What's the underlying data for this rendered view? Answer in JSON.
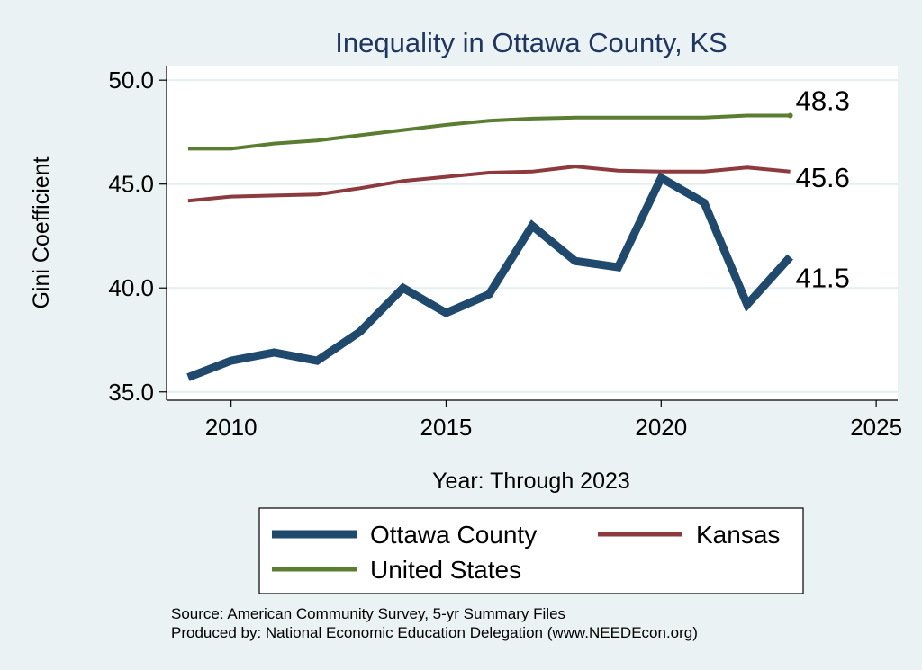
{
  "chart_data": {
    "type": "line",
    "title": "Inequality in Ottawa County, KS",
    "xlabel": "Year: Through 2023",
    "ylabel": "Gini Coefficient",
    "xlim": [
      2008.5,
      2025.5
    ],
    "ylim": [
      34.6,
      50.7
    ],
    "xticks": [
      2010,
      2015,
      2020,
      2025
    ],
    "yticks": [
      35.0,
      40.0,
      45.0,
      50.0
    ],
    "x": [
      2009,
      2010,
      2011,
      2012,
      2013,
      2014,
      2015,
      2016,
      2017,
      2018,
      2019,
      2020,
      2021,
      2022,
      2023
    ],
    "series": [
      {
        "name": "Ottawa County",
        "color": "#1f4a6e",
        "values": [
          35.7,
          36.5,
          36.9,
          36.5,
          37.9,
          40.0,
          38.8,
          39.7,
          43.0,
          41.3,
          41.0,
          45.3,
          44.1,
          39.2,
          41.5
        ],
        "end_label": "41.5"
      },
      {
        "name": "Kansas",
        "color": "#8c3a3e",
        "values": [
          44.2,
          44.4,
          44.45,
          44.5,
          44.8,
          45.15,
          45.35,
          45.55,
          45.6,
          45.85,
          45.65,
          45.6,
          45.6,
          45.8,
          45.6
        ],
        "end_label": "45.6"
      },
      {
        "name": "United States",
        "color": "#5b7d32",
        "values": [
          46.7,
          46.7,
          46.95,
          47.1,
          47.35,
          47.6,
          47.85,
          48.05,
          48.15,
          48.2,
          48.2,
          48.2,
          48.2,
          48.3,
          48.3
        ],
        "end_label": "48.3"
      }
    ],
    "legend": {
      "position": "bottom",
      "entries": [
        "Ottawa County",
        "Kansas",
        "United States"
      ]
    },
    "grid": true
  },
  "source": {
    "line1": "Source: American Community Survey, 5-yr Summary Files",
    "line2": "Produced by: National Economic Education Delegation (www.NEEDEcon.org)"
  }
}
